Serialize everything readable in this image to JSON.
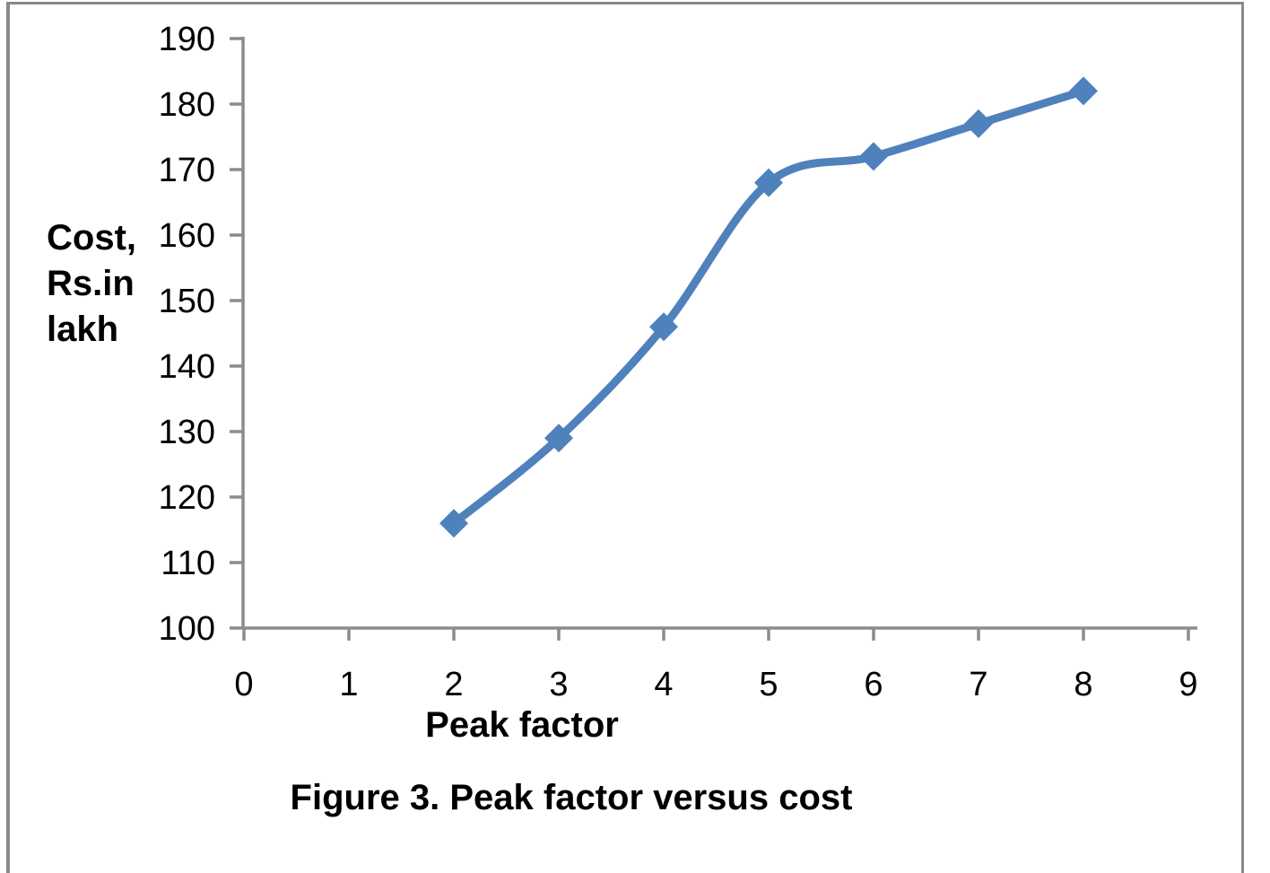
{
  "figure": {
    "caption": "Figure 3. Peak factor versus cost"
  },
  "chart_data": {
    "type": "line",
    "title": "",
    "xlabel": "Peak factor",
    "ylabel": "Cost, Rs.in lakh",
    "ylabel_lines": [
      "Cost,",
      "Rs.in",
      "lakh"
    ],
    "x": [
      2,
      3,
      4,
      5,
      6,
      7,
      8
    ],
    "series": [
      {
        "name": "Cost",
        "values": [
          116,
          129,
          146,
          168,
          172,
          177,
          182
        ]
      }
    ],
    "xlim": [
      0,
      9
    ],
    "ylim": [
      100,
      190
    ],
    "x_ticks": [
      0,
      1,
      2,
      3,
      4,
      5,
      6,
      7,
      8,
      9
    ],
    "y_ticks": [
      100,
      110,
      120,
      130,
      140,
      150,
      160,
      170,
      180,
      190
    ],
    "grid": false,
    "legend": "none",
    "smooth": true,
    "marker": "diamond",
    "colors": {
      "series_line": "#4F81BD",
      "axis_line": "#8C8C8C",
      "tick_text": "#000000"
    }
  }
}
